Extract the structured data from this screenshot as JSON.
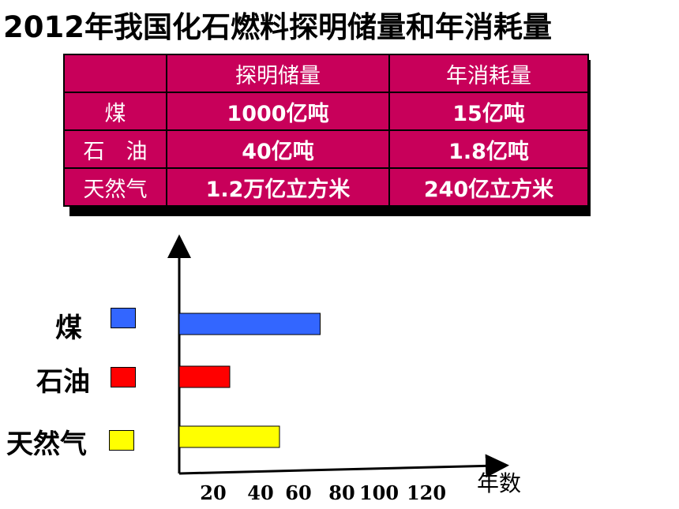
{
  "title": "2012年我国化石燃料探明储量和年消耗量",
  "table": {
    "headers": [
      "",
      "探明储量",
      "年消耗量"
    ],
    "rows": [
      {
        "name": "煤",
        "reserve": "1000亿吨",
        "consumption": "15亿吨"
      },
      {
        "name": "石　油",
        "reserve": "40亿吨",
        "consumption": "1.8亿吨"
      },
      {
        "name": "天然气",
        "reserve": "1.2万亿立方米",
        "consumption": "240亿立方米"
      }
    ]
  },
  "chart_data": {
    "type": "bar",
    "orientation": "horizontal",
    "categories": [
      "煤",
      "石油",
      "天然气"
    ],
    "values": [
      70,
      27,
      50
    ],
    "colors": [
      "#3366FF",
      "#FF0000",
      "#FFFF00"
    ],
    "xlabel": "年数",
    "xticks": [
      20,
      40,
      60,
      80,
      100,
      120
    ],
    "grid": false
  }
}
